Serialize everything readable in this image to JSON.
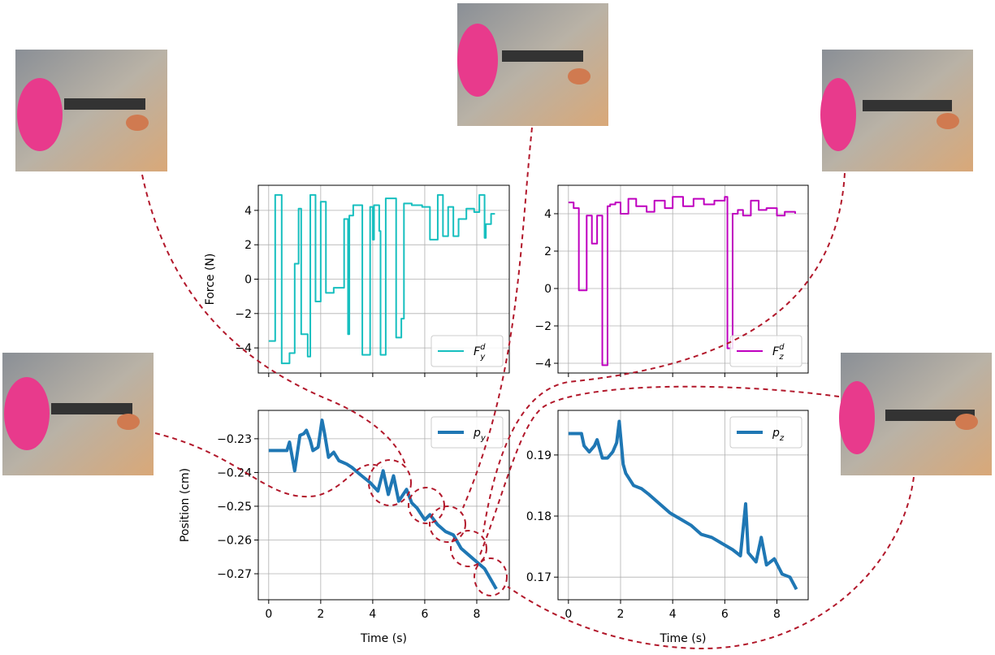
{
  "chart_data": [
    {
      "type": "line",
      "step": true,
      "ylabel": "Force (N)",
      "legend": "lower right",
      "grid": true,
      "show_xticklabels": false,
      "xlim": [
        -0.4,
        9.25
      ],
      "ylim": [
        -5.46,
        5.46
      ],
      "xticks": [
        0,
        2,
        4,
        6,
        8
      ],
      "yticks": [
        {
          "value": -4,
          "label": "−4"
        },
        {
          "value": -2,
          "label": "−2"
        },
        0,
        2,
        4
      ],
      "x": [
        0,
        0.25,
        0.5,
        0.8,
        1.0,
        1.15,
        1.25,
        1.5,
        1.6,
        1.8,
        2.0,
        2.2,
        2.5,
        2.9,
        3.05,
        3.1,
        3.25,
        3.6,
        3.9,
        4.0,
        4.05,
        4.25,
        4.3,
        4.5,
        4.9,
        5.1,
        5.2,
        5.5,
        5.9,
        6.2,
        6.5,
        6.7,
        6.9,
        7.1,
        7.3,
        7.6,
        7.9,
        8.1,
        8.3,
        8.35,
        8.55,
        8.7
      ],
      "series": [
        {
          "name": "F_y^d",
          "color": "#17bfbf",
          "linewidth": 2,
          "values": [
            -3.6,
            4.9,
            -4.9,
            -4.3,
            0.9,
            4.1,
            -3.2,
            -4.5,
            4.9,
            -1.3,
            4.5,
            -0.8,
            -0.5,
            3.5,
            -3.2,
            3.7,
            4.3,
            -4.4,
            4.2,
            2.3,
            4.3,
            2.8,
            -4.4,
            4.7,
            -3.4,
            -2.3,
            4.4,
            4.3,
            4.2,
            2.3,
            4.9,
            2.5,
            4.2,
            2.5,
            3.5,
            4.1,
            3.9,
            4.9,
            2.4,
            3.2,
            3.8,
            3.8
          ]
        }
      ]
    },
    {
      "type": "line",
      "step": true,
      "legend": "lower right",
      "grid": true,
      "show_xticklabels": false,
      "xlim": [
        -0.4,
        9.2
      ],
      "ylim": [
        -4.52,
        5.52
      ],
      "xticks": [
        0,
        2,
        4,
        6,
        8
      ],
      "yticks": [
        {
          "value": -4,
          "label": "−4"
        },
        {
          "value": -2,
          "label": "−2"
        },
        0,
        2,
        4
      ],
      "x": [
        0,
        0.2,
        0.4,
        0.7,
        0.9,
        1.1,
        1.3,
        1.5,
        1.6,
        1.8,
        2.0,
        2.3,
        2.6,
        3.0,
        3.3,
        3.7,
        4.0,
        4.4,
        4.8,
        5.2,
        5.6,
        6.0,
        6.1,
        6.3,
        6.5,
        6.7,
        7.0,
        7.3,
        7.6,
        8.0,
        8.3,
        8.7
      ],
      "series": [
        {
          "name": "F_z^d",
          "color": "#bf00bf",
          "linewidth": 2,
          "values": [
            4.6,
            4.3,
            -0.1,
            3.9,
            2.4,
            3.9,
            -4.1,
            4.4,
            4.5,
            4.6,
            4.0,
            4.8,
            4.4,
            4.1,
            4.7,
            4.3,
            4.9,
            4.4,
            4.8,
            4.5,
            4.7,
            4.9,
            -3.2,
            4.0,
            4.2,
            3.9,
            4.7,
            4.2,
            4.3,
            3.9,
            4.1,
            4.0
          ]
        }
      ]
    },
    {
      "type": "line",
      "xlabel": "Time (s)",
      "ylabel": "Position (cm)",
      "legend": "upper right",
      "grid": true,
      "show_xticklabels": true,
      "xlim": [
        -0.4,
        9.25
      ],
      "ylim": [
        -0.2777,
        -0.2216
      ],
      "xticks": [
        0,
        2,
        4,
        6,
        8
      ],
      "yticks": [
        {
          "value": -0.27,
          "label": "−0.27"
        },
        {
          "value": -0.26,
          "label": "−0.26"
        },
        {
          "value": -0.25,
          "label": "−0.25"
        },
        {
          "value": -0.24,
          "label": "−0.24"
        },
        {
          "value": -0.23,
          "label": "−0.23"
        }
      ],
      "x": [
        0,
        0.7,
        0.8,
        1.0,
        1.2,
        1.35,
        1.45,
        1.6,
        1.7,
        1.9,
        2.05,
        2.15,
        2.3,
        2.5,
        2.7,
        3.0,
        3.2,
        3.5,
        3.9,
        4.2,
        4.4,
        4.6,
        4.8,
        5.0,
        5.3,
        5.5,
        5.7,
        6.0,
        6.2,
        6.5,
        6.8,
        7.1,
        7.4,
        7.7,
        8.0,
        8.3,
        8.6,
        8.75
      ],
      "series": [
        {
          "name": "p_y",
          "color": "#1f77b4",
          "linewidth": 4,
          "values": [
            -0.2335,
            -0.2335,
            -0.231,
            -0.2395,
            -0.229,
            -0.2285,
            -0.2275,
            -0.2305,
            -0.2335,
            -0.2325,
            -0.2245,
            -0.2285,
            -0.2355,
            -0.234,
            -0.2365,
            -0.2375,
            -0.2385,
            -0.2405,
            -0.243,
            -0.2455,
            -0.2395,
            -0.2465,
            -0.241,
            -0.2485,
            -0.245,
            -0.249,
            -0.2505,
            -0.254,
            -0.2525,
            -0.2555,
            -0.2575,
            -0.2585,
            -0.2625,
            -0.2645,
            -0.2665,
            -0.2685,
            -0.2725,
            -0.2745
          ]
        }
      ]
    },
    {
      "type": "line",
      "xlabel": "Time (s)",
      "legend": "upper right",
      "grid": true,
      "show_xticklabels": true,
      "xlim": [
        -0.4,
        9.2
      ],
      "ylim": [
        0.1663,
        0.1973
      ],
      "xticks": [
        0,
        2,
        4,
        6,
        8
      ],
      "yticks": [
        0.17,
        0.18,
        0.19
      ],
      "x": [
        0,
        0.5,
        0.6,
        0.8,
        1.0,
        1.1,
        1.3,
        1.5,
        1.7,
        1.85,
        1.95,
        2.1,
        2.2,
        2.5,
        2.8,
        3.1,
        3.5,
        3.9,
        4.3,
        4.7,
        5.1,
        5.5,
        5.9,
        6.3,
        6.6,
        6.8,
        6.9,
        7.2,
        7.4,
        7.6,
        7.9,
        8.2,
        8.5,
        8.75
      ],
      "series": [
        {
          "name": "p_z",
          "color": "#1f77b4",
          "linewidth": 4,
          "values": [
            0.1935,
            0.1935,
            0.1915,
            0.1905,
            0.1915,
            0.1925,
            0.1895,
            0.1895,
            0.1905,
            0.192,
            0.1955,
            0.1885,
            0.187,
            0.185,
            0.1845,
            0.1835,
            0.182,
            0.1805,
            0.1795,
            0.1785,
            0.177,
            0.1765,
            0.1755,
            0.1745,
            0.1735,
            0.182,
            0.174,
            0.1725,
            0.1765,
            0.172,
            0.173,
            0.1705,
            0.17,
            0.168
          ]
        }
      ]
    }
  ]
}
